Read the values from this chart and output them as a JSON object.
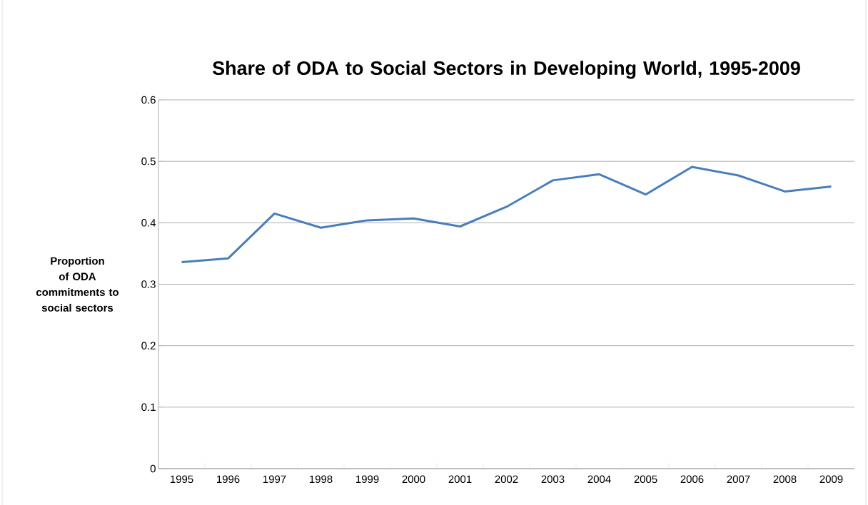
{
  "chart_data": {
    "type": "line",
    "title": "Share of ODA to Social Sectors in Developing World, 1995-2009",
    "ylabel": "Proportion of ODA commitments to social sectors",
    "categories": [
      "1995",
      "1996",
      "1997",
      "1998",
      "1999",
      "2000",
      "2001",
      "2002",
      "2003",
      "2004",
      "2005",
      "2006",
      "2007",
      "2008",
      "2009"
    ],
    "series": [
      {
        "color": "#4a7ebb",
        "values": [
          0.336,
          0.342,
          0.415,
          0.392,
          0.404,
          0.407,
          0.394,
          0.426,
          0.469,
          0.479,
          0.446,
          0.491,
          0.477,
          0.451,
          0.459
        ]
      }
    ],
    "ylim": [
      0,
      0.6
    ],
    "yticks": [
      0,
      0.1,
      0.2,
      0.3,
      0.4,
      0.5,
      0.6
    ],
    "grid": "y",
    "marker": "none",
    "line_style": "solid"
  }
}
